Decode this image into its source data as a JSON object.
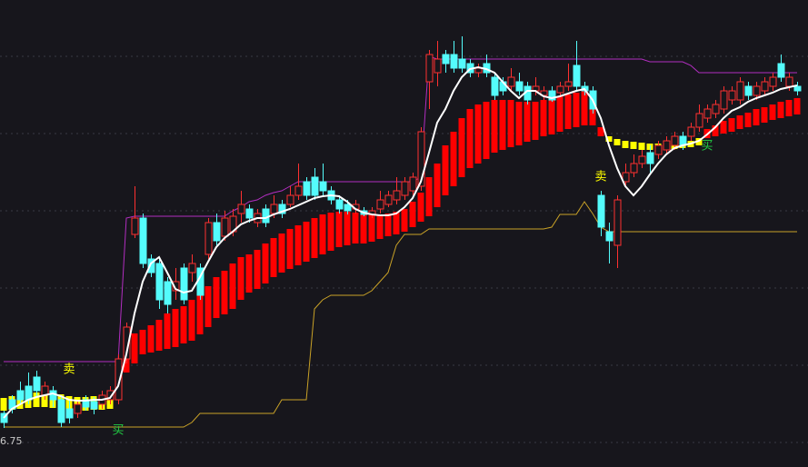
{
  "chart_data": {
    "type": "candlestick",
    "ylim": [
      6.32,
      11.46
    ],
    "yticks": [
      10.84,
      9.99,
      9.14,
      8.29,
      7.44,
      6.59
    ],
    "tick_labels": false,
    "grid": true,
    "background": "#17161c",
    "candles": {
      "up_color": "#ff3030",
      "down_color": "#54fcfc",
      "open": [
        6.91,
        7.06,
        7.16,
        7.21,
        7.31,
        7.11,
        7.16,
        7.06,
        6.96,
        6.91,
        7.06,
        7.04,
        7.01,
        7.06,
        7.06,
        7.51,
        8.88,
        9.06,
        8.61,
        8.56,
        8.36,
        8.26,
        8.51,
        8.46,
        8.51,
        8.66,
        9.01,
        8.86,
        8.91,
        9.11,
        9.16,
        9.01,
        9.16,
        9.11,
        9.21,
        9.21,
        9.31,
        9.46,
        9.51,
        9.46,
        9.36,
        9.26,
        9.21,
        9.16,
        9.14,
        9.1,
        9.16,
        9.21,
        9.26,
        9.31,
        9.36,
        9.41,
        10.56,
        10.66,
        10.86,
        10.86,
        10.81,
        10.76,
        10.66,
        10.76,
        10.61,
        10.56,
        10.51,
        10.56,
        10.51,
        10.46,
        10.41,
        10.46,
        10.44,
        10.51,
        10.74,
        10.51,
        10.46,
        9.31,
        8.91,
        8.76,
        9.46,
        9.56,
        9.66,
        9.78,
        9.76,
        9.81,
        9.86,
        9.96,
        9.96,
        10.06,
        10.16,
        10.21,
        10.26,
        10.36,
        10.36,
        10.51,
        10.41,
        10.46,
        10.51,
        10.76,
        10.51,
        10.51
      ],
      "close": [
        6.81,
        6.96,
        7.06,
        7.06,
        7.16,
        7.21,
        7.06,
        6.81,
        6.86,
        7.01,
        6.98,
        6.96,
        7.11,
        7.16,
        7.51,
        7.86,
        9.06,
        8.56,
        8.46,
        8.16,
        8.11,
        8.36,
        8.16,
        8.56,
        8.21,
        9.01,
        8.81,
        9.06,
        9.08,
        9.21,
        9.06,
        9.11,
        9.01,
        9.21,
        9.11,
        9.31,
        9.41,
        9.31,
        9.31,
        9.36,
        9.26,
        9.16,
        9.14,
        9.21,
        9.1,
        9.14,
        9.26,
        9.31,
        9.36,
        9.46,
        9.51,
        10.01,
        10.86,
        10.81,
        10.76,
        10.71,
        10.71,
        10.66,
        10.71,
        10.66,
        10.41,
        10.46,
        10.61,
        10.46,
        10.36,
        10.51,
        10.46,
        10.36,
        10.51,
        10.56,
        10.51,
        10.46,
        10.26,
        8.96,
        8.81,
        9.26,
        9.56,
        9.66,
        9.74,
        9.66,
        9.86,
        9.91,
        9.96,
        9.86,
        10.06,
        10.21,
        10.26,
        10.31,
        10.46,
        10.46,
        10.56,
        10.41,
        10.51,
        10.56,
        10.61,
        10.61,
        10.61,
        10.46
      ],
      "high": [
        6.94,
        7.11,
        7.26,
        7.36,
        7.38,
        7.26,
        7.21,
        7.11,
        7.06,
        7.06,
        7.11,
        7.09,
        7.16,
        7.21,
        7.56,
        7.91,
        9.41,
        9.11,
        8.66,
        8.61,
        8.41,
        8.51,
        8.56,
        8.66,
        8.56,
        9.06,
        9.11,
        9.14,
        9.16,
        9.36,
        9.21,
        9.16,
        9.21,
        9.31,
        9.26,
        9.41,
        9.66,
        9.51,
        9.61,
        9.66,
        9.41,
        9.31,
        9.26,
        9.26,
        9.18,
        9.18,
        9.36,
        9.36,
        9.51,
        9.51,
        9.56,
        10.06,
        10.91,
        11.01,
        10.91,
        11.01,
        11.06,
        10.81,
        10.76,
        10.86,
        10.66,
        10.61,
        10.71,
        10.66,
        10.56,
        10.61,
        10.51,
        10.51,
        10.56,
        10.76,
        11.01,
        10.56,
        10.51,
        9.36,
        9.01,
        9.31,
        9.66,
        9.76,
        9.81,
        9.86,
        9.91,
        9.96,
        10.01,
        10.01,
        10.11,
        10.31,
        10.31,
        10.36,
        10.51,
        10.51,
        10.61,
        10.56,
        10.56,
        10.61,
        10.66,
        10.86,
        10.66,
        10.56
      ],
      "low": [
        6.75,
        6.91,
        7.01,
        7.01,
        7.1,
        7.06,
        6.98,
        6.76,
        6.8,
        6.86,
        6.94,
        6.9,
        6.96,
        7.01,
        7.01,
        7.46,
        8.84,
        8.51,
        8.41,
        8.06,
        8.01,
        8.16,
        8.11,
        8.36,
        8.16,
        8.61,
        8.76,
        8.81,
        8.86,
        9.01,
        9.01,
        8.96,
        8.96,
        9.06,
        9.06,
        9.18,
        9.26,
        9.26,
        9.26,
        9.31,
        9.21,
        9.11,
        9.1,
        9.11,
        9.08,
        9.06,
        9.11,
        9.18,
        9.21,
        9.26,
        9.31,
        9.36,
        10.26,
        10.51,
        10.66,
        10.66,
        10.66,
        10.61,
        10.61,
        10.61,
        10.36,
        10.41,
        10.46,
        10.41,
        10.31,
        10.41,
        10.36,
        10.34,
        10.4,
        10.46,
        10.46,
        10.41,
        10.21,
        8.86,
        8.56,
        8.51,
        9.41,
        9.51,
        9.61,
        9.56,
        9.71,
        9.76,
        9.81,
        9.81,
        9.91,
        10.01,
        10.11,
        10.16,
        10.21,
        10.31,
        10.31,
        10.36,
        10.36,
        10.41,
        10.46,
        10.56,
        10.46,
        10.41
      ]
    },
    "band": {
      "upper": [
        7.08,
        7.1,
        7.12,
        7.13,
        7.14,
        7.14,
        7.13,
        7.12,
        7.1,
        7.09,
        7.09,
        7.1,
        7.1,
        7.12,
        7.46,
        7.66,
        7.79,
        7.83,
        7.88,
        7.94,
        8.01,
        8.06,
        8.09,
        8.16,
        8.24,
        8.31,
        8.41,
        8.48,
        8.56,
        8.63,
        8.66,
        8.71,
        8.78,
        8.84,
        8.89,
        8.94,
        8.98,
        9.02,
        9.06,
        9.1,
        9.12,
        9.13,
        9.13,
        9.12,
        9.1,
        9.1,
        9.1,
        9.11,
        9.13,
        9.16,
        9.24,
        9.34,
        9.51,
        9.66,
        9.86,
        10.01,
        10.16,
        10.26,
        10.31,
        10.34,
        10.36,
        10.36,
        10.36,
        10.34,
        10.34,
        10.34,
        10.36,
        10.38,
        10.4,
        10.42,
        10.44,
        10.46,
        10.26,
        10.06,
        9.96,
        9.93,
        9.91,
        9.9,
        9.89,
        9.88,
        9.88,
        9.88,
        9.89,
        9.9,
        9.91,
        9.94,
        10.04,
        10.08,
        10.13,
        10.16,
        10.19,
        10.22,
        10.26,
        10.28,
        10.31,
        10.34,
        10.36,
        10.38
      ],
      "lower": [
        6.94,
        6.95,
        6.96,
        6.97,
        6.98,
        6.98,
        6.97,
        6.96,
        6.95,
        6.94,
        6.94,
        6.95,
        6.95,
        6.96,
        7.28,
        7.36,
        7.46,
        7.56,
        7.58,
        7.6,
        7.62,
        7.64,
        7.68,
        7.71,
        7.78,
        7.86,
        7.96,
        8.0,
        8.06,
        8.16,
        8.24,
        8.28,
        8.34,
        8.41,
        8.46,
        8.5,
        8.54,
        8.58,
        8.62,
        8.66,
        8.7,
        8.74,
        8.76,
        8.78,
        8.78,
        8.8,
        8.83,
        8.86,
        8.88,
        8.91,
        8.96,
        9.02,
        9.08,
        9.18,
        9.31,
        9.41,
        9.51,
        9.61,
        9.66,
        9.71,
        9.78,
        9.81,
        9.84,
        9.86,
        9.9,
        9.92,
        9.96,
        9.98,
        10.01,
        10.04,
        10.06,
        10.08,
        10.08,
        9.96,
        9.9,
        9.86,
        9.83,
        9.82,
        9.81,
        9.81,
        9.81,
        9.81,
        9.82,
        9.83,
        9.84,
        9.86,
        9.94,
        9.96,
        9.99,
        10.01,
        10.04,
        10.06,
        10.08,
        10.11,
        10.14,
        10.16,
        10.18,
        10.2
      ],
      "colors": [
        "#ffff00",
        "#ffff00",
        "#ffff00",
        "#ffff00",
        "#ffff00",
        "#ffff00",
        "#ffff00",
        "#ffff00",
        "#ffff00",
        "#ffff00",
        "#ffff00",
        "#ffff00",
        "#ffff00",
        "#ffff00",
        "#ff0000",
        "#ff0000",
        "#ff0000",
        "#ff0000",
        "#ff0000",
        "#ff0000",
        "#ff0000",
        "#ff0000",
        "#ff0000",
        "#ff0000",
        "#ff0000",
        "#ff0000",
        "#ff0000",
        "#ff0000",
        "#ff0000",
        "#ff0000",
        "#ff0000",
        "#ff0000",
        "#ff0000",
        "#ff0000",
        "#ff0000",
        "#ff0000",
        "#ff0000",
        "#ff0000",
        "#ff0000",
        "#ff0000",
        "#ff0000",
        "#ff0000",
        "#ff0000",
        "#ff0000",
        "#ff0000",
        "#ff0000",
        "#ff0000",
        "#ff0000",
        "#ff0000",
        "#ff0000",
        "#ff0000",
        "#ff0000",
        "#ff0000",
        "#ff0000",
        "#ff0000",
        "#ff0000",
        "#ff0000",
        "#ff0000",
        "#ff0000",
        "#ff0000",
        "#ff0000",
        "#ff0000",
        "#ff0000",
        "#ff0000",
        "#ff0000",
        "#ff0000",
        "#ff0000",
        "#ff0000",
        "#ff0000",
        "#ff0000",
        "#ff0000",
        "#ff0000",
        "#ff0000",
        "#ff0000",
        "#ffff00",
        "#ffff00",
        "#ffff00",
        "#ffff00",
        "#ffff00",
        "#ffff00",
        "#ffff00",
        "#ffff00",
        "#ffff00",
        "#ffff00",
        "#ffff00",
        "#ffff00",
        "#ff0000",
        "#ff0000",
        "#ff0000",
        "#ff0000",
        "#ff0000",
        "#ff0000",
        "#ff0000",
        "#ff0000",
        "#ff0000",
        "#ff0000",
        "#ff0000",
        "#ff0000"
      ]
    },
    "lines": [
      {
        "color": "#b22ec0",
        "values": [
          7.48,
          7.48,
          7.48,
          7.48,
          7.48,
          7.48,
          7.48,
          7.48,
          7.48,
          7.48,
          7.48,
          7.48,
          7.48,
          7.48,
          7.48,
          9.06,
          9.08,
          9.08,
          9.08,
          9.08,
          9.08,
          9.08,
          9.08,
          9.08,
          9.08,
          9.08,
          9.08,
          9.08,
          9.14,
          9.18,
          9.24,
          9.26,
          9.31,
          9.34,
          9.36,
          9.41,
          9.46,
          9.46,
          9.46,
          9.46,
          9.46,
          9.46,
          9.46,
          9.46,
          9.46,
          9.46,
          9.46,
          9.46,
          9.46,
          9.46,
          9.46,
          9.51,
          10.84,
          10.81,
          10.81,
          10.81,
          10.81,
          10.81,
          10.81,
          10.81,
          10.81,
          10.81,
          10.81,
          10.81,
          10.81,
          10.81,
          10.81,
          10.81,
          10.81,
          10.81,
          10.81,
          10.81,
          10.81,
          10.81,
          10.81,
          10.81,
          10.81,
          10.81,
          10.81,
          10.78,
          10.78,
          10.78,
          10.78,
          10.78,
          10.74,
          10.66,
          10.66,
          10.66,
          10.66,
          10.66,
          10.66,
          10.66,
          10.66,
          10.66,
          10.66,
          10.66,
          10.66,
          10.66
        ]
      },
      {
        "color": "#c9a227",
        "values": [
          6.76,
          6.76,
          6.76,
          6.76,
          6.76,
          6.76,
          6.76,
          6.76,
          6.76,
          6.76,
          6.76,
          6.76,
          6.76,
          6.76,
          6.76,
          6.76,
          6.76,
          6.76,
          6.76,
          6.76,
          6.76,
          6.76,
          6.76,
          6.81,
          6.91,
          6.91,
          6.91,
          6.91,
          6.91,
          6.91,
          6.91,
          6.91,
          6.91,
          6.91,
          7.06,
          7.06,
          7.06,
          7.06,
          8.06,
          8.16,
          8.21,
          8.21,
          8.21,
          8.21,
          8.21,
          8.26,
          8.36,
          8.46,
          8.76,
          8.88,
          8.88,
          8.88,
          8.94,
          8.94,
          8.94,
          8.94,
          8.94,
          8.94,
          8.94,
          8.94,
          8.94,
          8.94,
          8.94,
          8.94,
          8.94,
          8.94,
          8.94,
          8.96,
          9.1,
          9.1,
          9.1,
          9.24,
          9.11,
          8.96,
          8.91,
          8.91,
          8.91,
          8.91,
          8.91,
          8.91,
          8.91,
          8.91,
          8.91,
          8.91,
          8.91,
          8.91,
          8.91,
          8.91,
          8.91,
          8.91,
          8.91,
          8.91,
          8.91,
          8.91,
          8.91,
          8.91,
          8.91,
          8.91
        ]
      },
      {
        "color": "#ffffff",
        "values": [
          6.86,
          6.96,
          7.01,
          7.06,
          7.09,
          7.11,
          7.13,
          7.1,
          7.06,
          7.05,
          7.05,
          7.06,
          7.06,
          7.08,
          7.21,
          7.56,
          8.01,
          8.36,
          8.56,
          8.63,
          8.46,
          8.28,
          8.24,
          8.26,
          8.41,
          8.58,
          8.74,
          8.84,
          8.91,
          8.99,
          9.03,
          9.06,
          9.06,
          9.1,
          9.13,
          9.16,
          9.2,
          9.24,
          9.28,
          9.3,
          9.31,
          9.3,
          9.24,
          9.16,
          9.12,
          9.1,
          9.09,
          9.09,
          9.11,
          9.18,
          9.28,
          9.46,
          9.78,
          10.11,
          10.26,
          10.46,
          10.61,
          10.7,
          10.72,
          10.7,
          10.66,
          10.56,
          10.46,
          10.38,
          10.46,
          10.46,
          10.4,
          10.38,
          10.4,
          10.43,
          10.46,
          10.48,
          10.36,
          10.16,
          9.86,
          9.61,
          9.41,
          9.31,
          9.41,
          9.54,
          9.66,
          9.76,
          9.83,
          9.86,
          9.88,
          9.91,
          9.98,
          10.06,
          10.16,
          10.24,
          10.28,
          10.34,
          10.38,
          10.41,
          10.44,
          10.48,
          10.5,
          10.52
        ]
      }
    ],
    "annotations": [
      {
        "text": "卖",
        "x": 8,
        "y": 7.39,
        "color": "#ffff00"
      },
      {
        "text": "买",
        "x": 14,
        "y": 6.72,
        "color": "#22cc44"
      },
      {
        "text": "卖",
        "x": 73,
        "y": 9.51,
        "color": "#ffff00"
      },
      {
        "text": "买",
        "x": 86,
        "y": 9.85,
        "color": "#22cc44"
      }
    ],
    "low_label": {
      "x": 0,
      "value": 6.75
    }
  }
}
